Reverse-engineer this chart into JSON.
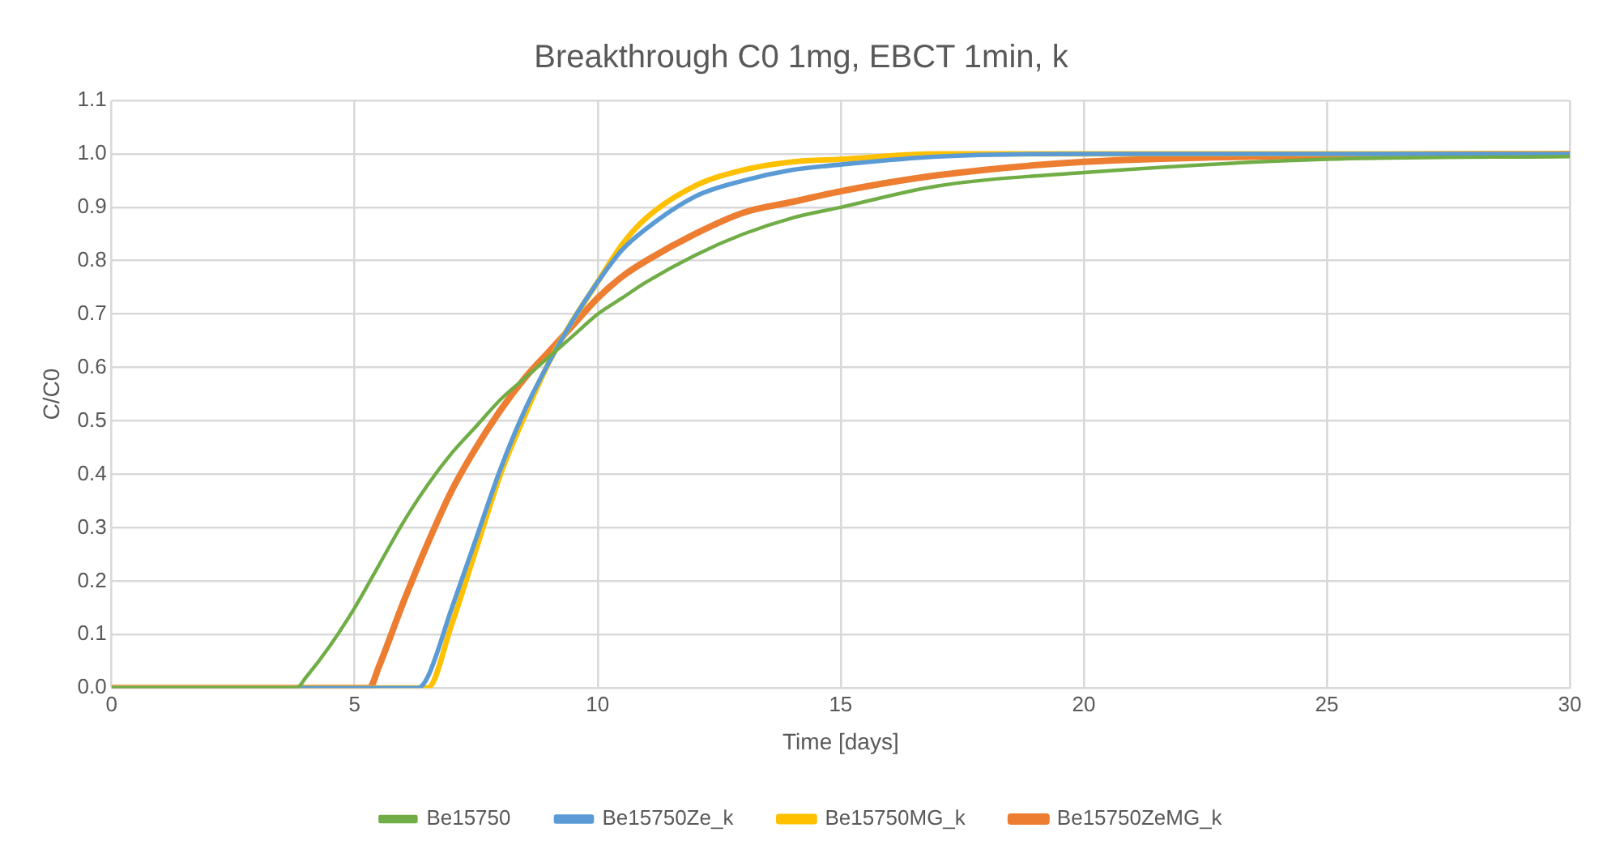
{
  "chart_data": {
    "type": "line",
    "title": "Breakthrough C0 1mg, EBCT 1min, k",
    "xlabel": "Time [days]",
    "ylabel": "C/C0",
    "xlim": [
      0,
      30
    ],
    "xticks": [
      0,
      5,
      10,
      15,
      20,
      25,
      30
    ],
    "ylim": [
      0,
      1.1
    ],
    "yticks": [
      {
        "value": 0,
        "label": "0.0"
      },
      0.1,
      0.2,
      0.3,
      0.4,
      0.5,
      0.6,
      0.7,
      0.8,
      0.9,
      {
        "value": 1,
        "label": "1.0"
      },
      1.1
    ],
    "grid": true,
    "legend": "bottom",
    "marker": "none",
    "line_style": "solid",
    "series": [
      {
        "name": "Be15750",
        "color": "#70ad47",
        "x": [
          0,
          3.8,
          4,
          4.5,
          5,
          5.5,
          6,
          6.5,
          7,
          7.5,
          8,
          8.5,
          9,
          9.5,
          10,
          10.5,
          11,
          12,
          13,
          14,
          15,
          17,
          20,
          25,
          30
        ],
        "values": [
          0,
          0,
          0.02,
          0.08,
          0.15,
          0.23,
          0.31,
          0.38,
          0.44,
          0.49,
          0.54,
          0.58,
          0.62,
          0.66,
          0.7,
          0.73,
          0.76,
          0.81,
          0.85,
          0.88,
          0.9,
          0.94,
          0.965,
          0.99,
          0.995
        ]
      },
      {
        "name": "Be15750Ze_k",
        "color": "#5b9bd5",
        "x": [
          0,
          6.3,
          6.5,
          7,
          7.5,
          8,
          8.5,
          9,
          9.5,
          10,
          10.5,
          11,
          12,
          13,
          14,
          15,
          17,
          20,
          25,
          30
        ],
        "values": [
          0,
          0,
          0.02,
          0.15,
          0.28,
          0.41,
          0.52,
          0.61,
          0.69,
          0.76,
          0.82,
          0.86,
          0.92,
          0.95,
          0.97,
          0.98,
          0.995,
          1,
          1,
          1
        ]
      },
      {
        "name": "Be15750MG_k",
        "color": "#ffc000",
        "x": [
          0,
          6.5,
          7,
          7.5,
          8,
          8.5,
          9,
          9.5,
          10,
          10.5,
          11,
          12,
          13,
          14,
          15,
          17,
          20,
          25,
          30
        ],
        "values": [
          0,
          0,
          0.12,
          0.26,
          0.4,
          0.51,
          0.61,
          0.69,
          0.76,
          0.83,
          0.88,
          0.94,
          0.97,
          0.985,
          0.99,
          1,
          1,
          1,
          1
        ]
      },
      {
        "name": "Be15750ZeMG_k",
        "color": "#ed7d31",
        "x": [
          0,
          5.3,
          5.5,
          6,
          6.5,
          7,
          7.5,
          8,
          8.5,
          9,
          9.5,
          10,
          10.5,
          11,
          12,
          13,
          14,
          15,
          17,
          20,
          25,
          30
        ],
        "values": [
          0,
          0,
          0.04,
          0.16,
          0.27,
          0.37,
          0.45,
          0.52,
          0.58,
          0.63,
          0.68,
          0.73,
          0.77,
          0.8,
          0.85,
          0.89,
          0.91,
          0.93,
          0.96,
          0.985,
          0.997,
          1
        ]
      }
    ]
  }
}
